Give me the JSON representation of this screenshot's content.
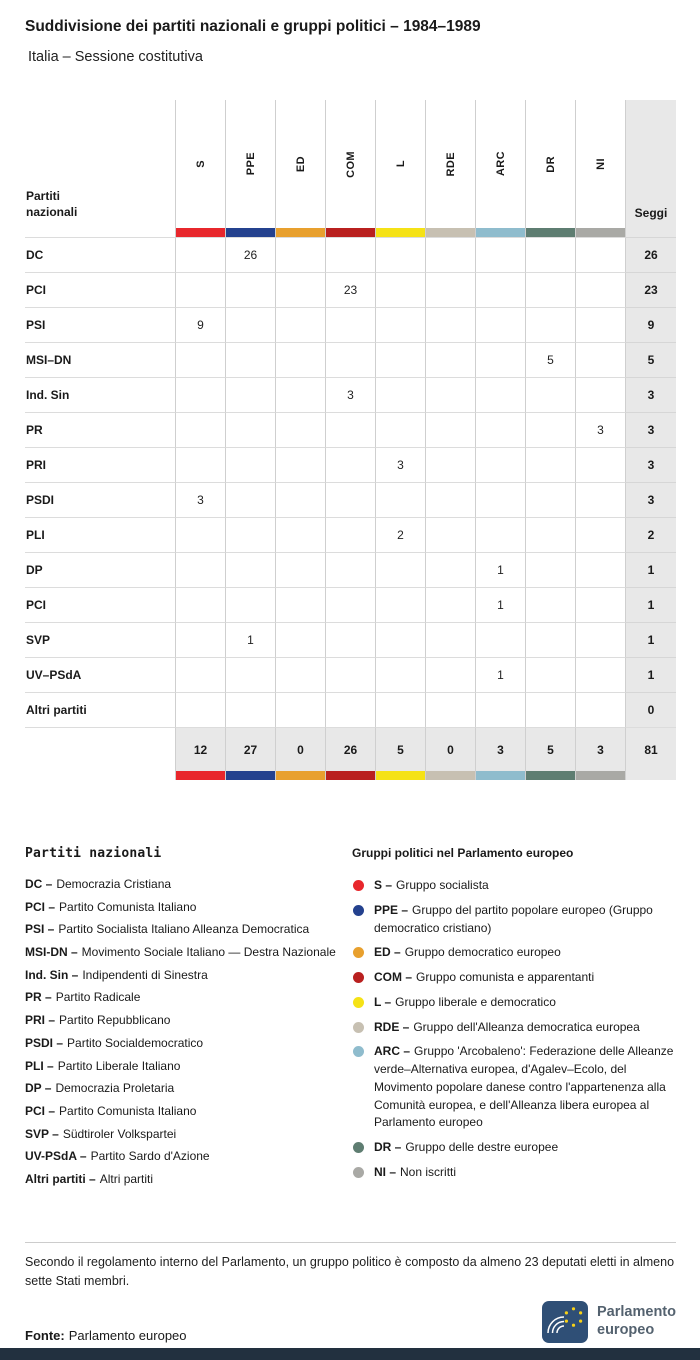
{
  "title": "Suddivisione dei partiti nazionali e gruppi politici – 1984–1989",
  "subtitle": "Italia – Sessione costitutiva",
  "chart_data": {
    "type": "table",
    "title": "Suddivisione dei partiti nazionali e gruppi politici – 1984–1989",
    "subtitle": "Italia – Sessione costitutiva",
    "row_header": [
      "Partiti",
      "nazionali"
    ],
    "seats_column": "Seggi",
    "group_columns": [
      {
        "code": "S",
        "color": "#e8272c"
      },
      {
        "code": "PPE",
        "color": "#24418e"
      },
      {
        "code": "ED",
        "color": "#e8a02e"
      },
      {
        "code": "COM",
        "color": "#b9201f"
      },
      {
        "code": "L",
        "color": "#f5e216"
      },
      {
        "code": "RDE",
        "color": "#c7c0b2"
      },
      {
        "code": "ARC",
        "color": "#8fbccd"
      },
      {
        "code": "DR",
        "color": "#5e7d71"
      },
      {
        "code": "NI",
        "color": "#a9a9a5"
      }
    ],
    "rows": [
      {
        "party": "DC",
        "values": [
          null,
          26,
          null,
          null,
          null,
          null,
          null,
          null,
          null
        ],
        "seats": 26
      },
      {
        "party": "PCI",
        "values": [
          null,
          null,
          null,
          23,
          null,
          null,
          null,
          null,
          null
        ],
        "seats": 23
      },
      {
        "party": "PSI",
        "values": [
          9,
          null,
          null,
          null,
          null,
          null,
          null,
          null,
          null
        ],
        "seats": 9
      },
      {
        "party": "MSI–DN",
        "values": [
          null,
          null,
          null,
          null,
          null,
          null,
          null,
          5,
          null
        ],
        "seats": 5
      },
      {
        "party": "Ind. Sin",
        "values": [
          null,
          null,
          null,
          3,
          null,
          null,
          null,
          null,
          null
        ],
        "seats": 3
      },
      {
        "party": "PR",
        "values": [
          null,
          null,
          null,
          null,
          null,
          null,
          null,
          null,
          3
        ],
        "seats": 3
      },
      {
        "party": "PRI",
        "values": [
          null,
          null,
          null,
          null,
          3,
          null,
          null,
          null,
          null
        ],
        "seats": 3
      },
      {
        "party": "PSDI",
        "values": [
          3,
          null,
          null,
          null,
          null,
          null,
          null,
          null,
          null
        ],
        "seats": 3
      },
      {
        "party": "PLI",
        "values": [
          null,
          null,
          null,
          null,
          2,
          null,
          null,
          null,
          null
        ],
        "seats": 2
      },
      {
        "party": "DP",
        "values": [
          null,
          null,
          null,
          null,
          null,
          null,
          1,
          null,
          null
        ],
        "seats": 1
      },
      {
        "party": "PCI",
        "values": [
          null,
          null,
          null,
          null,
          null,
          null,
          1,
          null,
          null
        ],
        "seats": 1
      },
      {
        "party": "SVP",
        "values": [
          null,
          1,
          null,
          null,
          null,
          null,
          null,
          null,
          null
        ],
        "seats": 1
      },
      {
        "party": "UV–PSdA",
        "values": [
          null,
          null,
          null,
          null,
          null,
          null,
          1,
          null,
          null
        ],
        "seats": 1
      },
      {
        "party": "Altri partiti",
        "values": [
          null,
          null,
          null,
          null,
          null,
          null,
          null,
          null,
          null
        ],
        "seats": 0
      }
    ],
    "totals": {
      "values": [
        12,
        27,
        0,
        26,
        5,
        0,
        3,
        5,
        3
      ],
      "seats": 81
    }
  },
  "legend_parties": {
    "header": "Partiti nazionali",
    "items": [
      {
        "code": "DC –",
        "name": "Democrazia Cristiana"
      },
      {
        "code": "PCI –",
        "name": "Partito Comunista Italiano"
      },
      {
        "code": "PSI –",
        "name": "Partito Socialista Italiano Alleanza Democratica"
      },
      {
        "code": "MSI-DN –",
        "name": "Movimento Sociale Italiano — Destra Nazionale"
      },
      {
        "code": "Ind. Sin –",
        "name": "Indipendenti di Sinestra"
      },
      {
        "code": "PR –",
        "name": "Partito Radicale"
      },
      {
        "code": "PRI –",
        "name": "Partito Repubblicano"
      },
      {
        "code": "PSDI –",
        "name": "Partito Socialdemocratico"
      },
      {
        "code": "PLI –",
        "name": "Partito Liberale Italiano"
      },
      {
        "code": "DP –",
        "name": "Democrazia Proletaria"
      },
      {
        "code": "PCI –",
        "name": "Partito Comunista Italiano"
      },
      {
        "code": "SVP –",
        "name": "Südtiroler Volkspartei"
      },
      {
        "code": "UV-PSdA –",
        "name": "Partito Sardo d'Azione"
      },
      {
        "code": "Altri partiti –",
        "name": "Altri partiti"
      }
    ]
  },
  "legend_groups": {
    "header": "Gruppi politici nel Parlamento europeo",
    "items": [
      {
        "code": "S –",
        "color": "#e8272c",
        "name": "Gruppo socialista"
      },
      {
        "code": "PPE –",
        "color": "#24418e",
        "name": "Gruppo del partito popolare europeo (Gruppo democratico cristiano)"
      },
      {
        "code": "ED –",
        "color": "#e8a02e",
        "name": "Gruppo democratico europeo"
      },
      {
        "code": "COM –",
        "color": "#b9201f",
        "name": "Gruppo comunista e apparentanti"
      },
      {
        "code": "L –",
        "color": "#f5e216",
        "name": "Gruppo liberale e democratico"
      },
      {
        "code": "RDE –",
        "color": "#c7c0b2",
        "name": "Gruppo dell'Alleanza democratica europea"
      },
      {
        "code": "ARC –",
        "color": "#8fbccd",
        "name": "Gruppo 'Arcobaleno': Federazione delle Alleanze verde–Alternativa europea, d'Agalev–Ecolo, del Movimento popolare danese contro l'appartenenza alla Comunità europea, e dell'Alleanza libera europea al Parlamento europeo"
      },
      {
        "code": "DR –",
        "color": "#5e7d71",
        "name": "Gruppo delle destre europee"
      },
      {
        "code": "NI –",
        "color": "#a9a9a5",
        "name": "Non iscritti"
      }
    ]
  },
  "footnote": "Secondo il regolamento interno del Parlamento, un gruppo politico è composto da almeno 23 deputati eletti in almeno sette Stati membri.",
  "source": {
    "label": "Fonte:",
    "value": "Parlamento europeo"
  },
  "logo": {
    "line1": "Parlamento",
    "line2": "europeo"
  },
  "colors": {
    "seats_bg": "#e8e8e8",
    "bottom_bar": "#22303f",
    "logo_blue": "#2f4f76",
    "star_yellow": "#f7d117",
    "logo_text": "#54626f"
  }
}
